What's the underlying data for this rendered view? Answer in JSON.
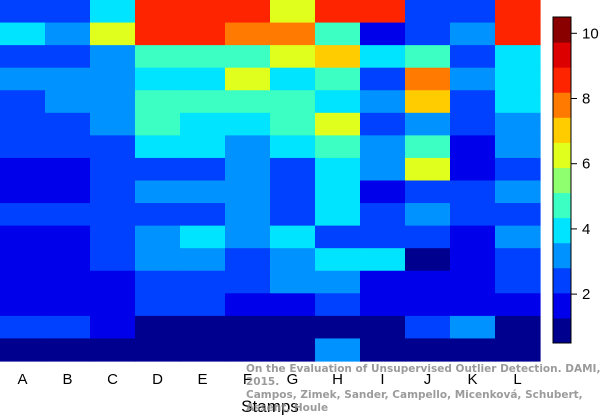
{
  "chart_data": {
    "type": "heatmap",
    "title": "",
    "xlabel": "Stamps",
    "ylabel": "",
    "x_categories": [
      "A",
      "B",
      "C",
      "D",
      "E",
      "F",
      "G",
      "H",
      "I",
      "J",
      "K",
      "L"
    ],
    "color_scale": {
      "min": 0.5,
      "max": 10.5,
      "ticks": [
        2,
        4,
        6,
        8,
        10
      ],
      "colors": [
        "#00008F",
        "#0000EA",
        "#0040FF",
        "#0093FF",
        "#00E4FF",
        "#3CFFC3",
        "#8FFF70",
        "#E1FF1D",
        "#FFCC00",
        "#FF7A00",
        "#FF2400",
        "#DC0000",
        "#8A0000"
      ]
    },
    "values": [
      [
        3,
        3,
        5,
        11,
        11,
        11,
        8,
        11,
        11,
        3,
        3,
        11
      ],
      [
        5,
        4,
        8,
        11,
        11,
        10,
        10,
        6,
        2,
        3,
        4,
        11
      ],
      [
        3,
        3,
        4,
        6,
        6,
        6,
        8,
        9,
        5,
        6,
        3,
        5
      ],
      [
        4,
        4,
        4,
        5,
        5,
        8,
        5,
        6,
        3,
        10,
        4,
        5
      ],
      [
        3,
        4,
        4,
        6,
        6,
        6,
        6,
        5,
        4,
        9,
        3,
        5
      ],
      [
        3,
        3,
        4,
        6,
        5,
        5,
        6,
        8,
        3,
        4,
        3,
        4
      ],
      [
        3,
        3,
        3,
        5,
        5,
        4,
        5,
        6,
        4,
        6,
        2,
        4
      ],
      [
        2,
        2,
        3,
        3,
        3,
        4,
        3,
        5,
        4,
        8,
        2,
        3
      ],
      [
        2,
        2,
        3,
        4,
        4,
        4,
        3,
        5,
        2,
        3,
        3,
        4
      ],
      [
        3,
        3,
        3,
        3,
        3,
        4,
        3,
        5,
        3,
        4,
        3,
        3
      ],
      [
        2,
        2,
        3,
        4,
        5,
        4,
        5,
        3,
        3,
        3,
        2,
        4
      ],
      [
        2,
        2,
        3,
        4,
        4,
        3,
        4,
        5,
        5,
        1,
        2,
        3
      ],
      [
        2,
        2,
        2,
        3,
        3,
        3,
        4,
        4,
        2,
        2,
        2,
        3
      ],
      [
        2,
        2,
        2,
        3,
        3,
        2,
        2,
        3,
        2,
        2,
        2,
        2
      ],
      [
        3,
        3,
        2,
        1,
        1,
        1,
        1,
        1,
        1,
        3,
        4,
        1
      ],
      [
        1,
        1,
        1,
        1,
        1,
        1,
        1,
        4,
        1,
        1,
        1,
        1
      ]
    ]
  },
  "caption": "On the Evaluation of Unsupervised Outlier Detection. DAMI, 2015.\nCampos, Zimek, Sander, Campello, Micenková, Schubert, Assent, Houle"
}
